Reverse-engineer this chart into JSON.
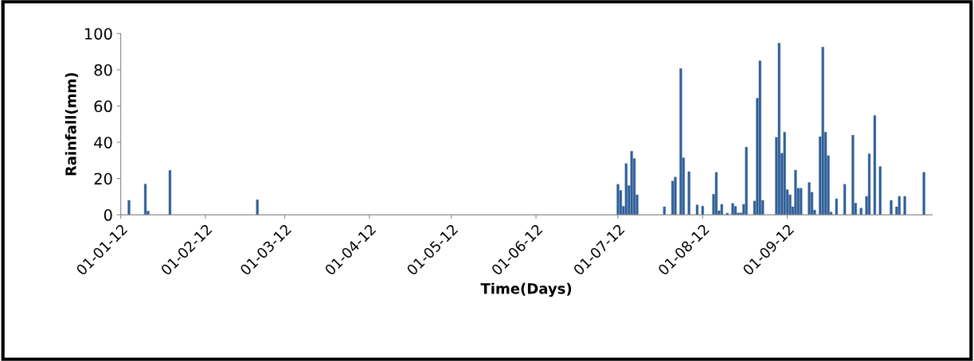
{
  "chart_data": {
    "type": "bar",
    "xlabel": "Time(Days)",
    "ylabel": "Rainfall(mm)",
    "color": "#2f5f98",
    "x": [
      "2012-01-04",
      "2012-01-10",
      "2012-01-11",
      "2012-01-19",
      "2012-02-20",
      "2012-07-01",
      "2012-07-02",
      "2012-07-03",
      "2012-07-04",
      "2012-07-05",
      "2012-07-06",
      "2012-07-07",
      "2012-07-08",
      "2012-07-18",
      "2012-07-21",
      "2012-07-22",
      "2012-07-24",
      "2012-07-25",
      "2012-07-27",
      "2012-07-30",
      "2012-08-01",
      "2012-08-05",
      "2012-08-06",
      "2012-08-07",
      "2012-08-08",
      "2012-08-10",
      "2012-08-12",
      "2012-08-13",
      "2012-08-14",
      "2012-08-15",
      "2012-08-16",
      "2012-08-17",
      "2012-08-20",
      "2012-08-21",
      "2012-08-22",
      "2012-08-23",
      "2012-08-28",
      "2012-08-29",
      "2012-08-30",
      "2012-08-31",
      "2012-09-01",
      "2012-09-02",
      "2012-09-03",
      "2012-09-04",
      "2012-09-05",
      "2012-09-06",
      "2012-09-09",
      "2012-09-10",
      "2012-09-11",
      "2012-09-13",
      "2012-09-14",
      "2012-09-15",
      "2012-09-16",
      "2012-09-17",
      "2012-09-19",
      "2012-09-22",
      "2012-09-25",
      "2012-09-26",
      "2012-09-28",
      "2012-09-30",
      "2012-10-01",
      "2012-10-03",
      "2012-10-05",
      "2012-10-09",
      "2012-10-11",
      "2012-10-12",
      "2012-10-14",
      "2012-10-21"
    ],
    "values": [
      8,
      17,
      2,
      24.5,
      8.3,
      16.8,
      13.4,
      4.7,
      28.2,
      16.1,
      35.1,
      31,
      11,
      4.4,
      18.6,
      20.8,
      80.7,
      31.4,
      23.8,
      5.4,
      4.8,
      11.4,
      23.4,
      2.2,
      5.8,
      0.9,
      6.3,
      4.7,
      1,
      1,
      5.8,
      37.3,
      7.6,
      64.3,
      85,
      8,
      42.7,
      94.7,
      34,
      45.6,
      13.9,
      11,
      4.4,
      24.6,
      14.6,
      14.6,
      17.8,
      12.4,
      2.6,
      43.1,
      92.5,
      45.6,
      32.6,
      1.5,
      8.8,
      16.8,
      43.9,
      6.4,
      3.7,
      10.2,
      33.6,
      54.8,
      26.6,
      8,
      4.4,
      10.2,
      10.2,
      23.4
    ],
    "xlim": [
      "2012-01-01",
      "2012-10-24"
    ],
    "xticks": [
      {
        "value": "2012-01-01",
        "label": "01-01-12"
      },
      {
        "value": "2012-02-01",
        "label": "01-02-12"
      },
      {
        "value": "2012-03-01",
        "label": "01-03-12"
      },
      {
        "value": "2012-04-01",
        "label": "01-04-12"
      },
      {
        "value": "2012-05-01",
        "label": "01-05-12"
      },
      {
        "value": "2012-06-01",
        "label": "01-06-12"
      },
      {
        "value": "2012-07-01",
        "label": "01-07-12"
      },
      {
        "value": "2012-08-01",
        "label": "01-08-12"
      },
      {
        "value": "2012-09-01",
        "label": "01-09-12"
      }
    ],
    "ylim": [
      0,
      100
    ],
    "yticks": [
      0,
      20,
      40,
      60,
      80,
      100
    ],
    "grid": false,
    "legend": false
  }
}
